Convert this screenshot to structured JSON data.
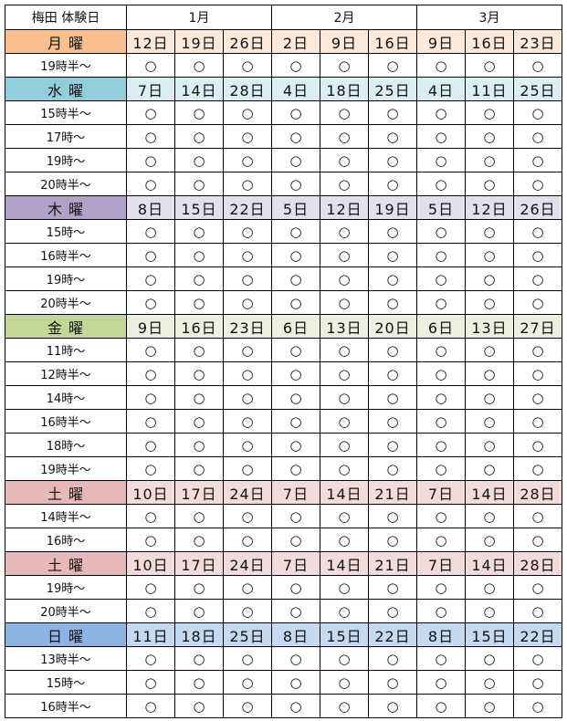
{
  "header": {
    "title": "梅田 体験日",
    "months": [
      "1月",
      "2月",
      "3月"
    ]
  },
  "mark": "○",
  "groups": [
    {
      "day": "月 曜",
      "color": "#fabf8f",
      "date_color": "#fde9d9",
      "dates": [
        "12日",
        "19日",
        "26日",
        "2日",
        "9日",
        "16日",
        "9日",
        "16日",
        "23日"
      ],
      "slots": [
        "19時半～"
      ]
    },
    {
      "day": "水 曜",
      "color": "#92cddc",
      "date_color": "#daeef3",
      "dates": [
        "7日",
        "14日",
        "28日",
        "4日",
        "18日",
        "25日",
        "4日",
        "11日",
        "25日"
      ],
      "slots": [
        "15時半～",
        "17時～",
        "19時～",
        "20時半～"
      ]
    },
    {
      "day": "木 曜",
      "color": "#b1a0c7",
      "date_color": "#e4dfec",
      "dates": [
        "8日",
        "15日",
        "22日",
        "5日",
        "12日",
        "19日",
        "5日",
        "12日",
        "26日"
      ],
      "slots": [
        "15時～",
        "16時半～",
        "19時～",
        "20時半～"
      ]
    },
    {
      "day": "金 曜",
      "color": "#c4d79b",
      "date_color": "#ebf1de",
      "dates": [
        "9日",
        "16日",
        "23日",
        "6日",
        "13日",
        "20日",
        "6日",
        "13日",
        "27日"
      ],
      "slots": [
        "11時～",
        "12時半～",
        "14時～",
        "16時半～",
        "18時～",
        "19時半～"
      ]
    },
    {
      "day": "土 曜",
      "color": "#e6b8b7",
      "date_color": "#f2dcdb",
      "dates": [
        "10日",
        "17日",
        "24日",
        "7日",
        "14日",
        "21日",
        "7日",
        "14日",
        "28日"
      ],
      "slots": [
        "14時半～",
        "16時～"
      ]
    },
    {
      "day": "土 曜",
      "color": "#e6b8b7",
      "date_color": "#f2dcdb",
      "dates": [
        "10日",
        "17日",
        "24日",
        "7日",
        "14日",
        "21日",
        "7日",
        "14日",
        "28日"
      ],
      "slots": [
        "19時～",
        "20時半～"
      ]
    },
    {
      "day": "日 曜",
      "color": "#8db4e2",
      "date_color": "#c5d9f1",
      "dates": [
        "11日",
        "18日",
        "25日",
        "8日",
        "15日",
        "22日",
        "8日",
        "15日",
        "22日"
      ],
      "slots": [
        "13時半～",
        "15時～",
        "16時半～"
      ]
    }
  ]
}
